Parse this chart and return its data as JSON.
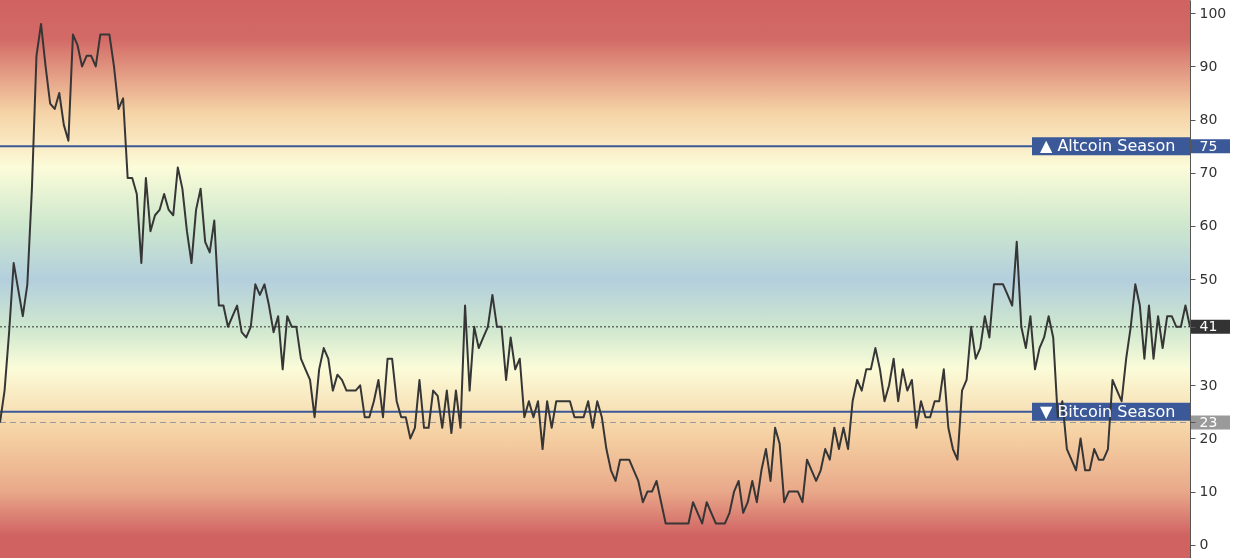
{
  "chart_data": {
    "type": "line",
    "categories": [
      null,
      null,
      null,
      null,
      null,
      null,
      null,
      null,
      null,
      null,
      null,
      null,
      null,
      null,
      null,
      null,
      null,
      null,
      null,
      null,
      null,
      null,
      null,
      null,
      null,
      null,
      null,
      null,
      null,
      null,
      null,
      null,
      null,
      null,
      null,
      null,
      null,
      null,
      null,
      null,
      null,
      null,
      null,
      null,
      null,
      null,
      null,
      null,
      null,
      null,
      null,
      null,
      null,
      null,
      null,
      null,
      null,
      null,
      null,
      null,
      null,
      null,
      null,
      null,
      null,
      null,
      null,
      null,
      null,
      null,
      null,
      null,
      null,
      null,
      null,
      null,
      null,
      null,
      null,
      null,
      null,
      null,
      null,
      null,
      null,
      null,
      null,
      null,
      null,
      null,
      null,
      null,
      null,
      null,
      null,
      null,
      null,
      null,
      null,
      null,
      null,
      null,
      null,
      null,
      null,
      null,
      null,
      null,
      null,
      null,
      null,
      null,
      null,
      null,
      null,
      null,
      null,
      null,
      null,
      null,
      null,
      null,
      null,
      null,
      null,
      null,
      null,
      null,
      null,
      null,
      null,
      null,
      null,
      null,
      null,
      null,
      null,
      null,
      null,
      null,
      null,
      null,
      null,
      null,
      null,
      null,
      null,
      null,
      null,
      null,
      null,
      null,
      null,
      null,
      null,
      null,
      null,
      null,
      null,
      null,
      null,
      null,
      null,
      null,
      null,
      null,
      null,
      null,
      null,
      null,
      null,
      null,
      null,
      null,
      null,
      null,
      null,
      null,
      null,
      null,
      null,
      null,
      null,
      null,
      null,
      null,
      null,
      null,
      null,
      null,
      null,
      null,
      null,
      null,
      null,
      null,
      null,
      null,
      null,
      null,
      null,
      null,
      null,
      null,
      null,
      null,
      null,
      null,
      null,
      null,
      null,
      null,
      null,
      null,
      null,
      null,
      null,
      null,
      null,
      null,
      null,
      null,
      null,
      null,
      null,
      null,
      null,
      null,
      null,
      null,
      null,
      null,
      null,
      null,
      null,
      null,
      null,
      null,
      null,
      null,
      null,
      null,
      null,
      null,
      null,
      null,
      null,
      null,
      null,
      null,
      null,
      null,
      null,
      null,
      null,
      null,
      null,
      null,
      null,
      null,
      null,
      null
    ],
    "values": [
      23,
      29,
      40,
      53,
      48,
      43,
      49,
      67,
      92,
      98,
      90,
      83,
      82,
      85,
      79,
      76,
      96,
      94,
      90,
      92,
      92,
      90,
      96,
      96,
      96,
      90,
      82,
      84,
      69,
      69,
      66,
      53,
      69,
      59,
      62,
      63,
      66,
      63,
      62,
      71,
      67,
      59,
      53,
      63,
      67,
      57,
      55,
      61,
      45,
      45,
      41,
      43,
      45,
      40,
      39,
      41,
      49,
      47,
      49,
      45,
      40,
      43,
      33,
      43,
      41,
      41,
      35,
      33,
      31,
      24,
      33,
      37,
      35,
      29,
      32,
      31,
      29,
      29,
      29,
      30,
      24,
      24,
      27,
      31,
      24,
      35,
      35,
      27,
      24,
      24,
      20,
      22,
      31,
      22,
      22,
      29,
      28,
      22,
      29,
      21,
      29,
      22,
      45,
      29,
      41,
      37,
      39,
      41,
      47,
      41,
      41,
      31,
      39,
      33,
      35,
      24,
      27,
      24,
      27,
      18,
      27,
      22,
      27,
      27,
      27,
      27,
      24,
      24,
      24,
      27,
      22,
      27,
      24,
      18,
      14,
      12,
      16,
      16,
      16,
      14,
      12,
      8,
      10,
      10,
      12,
      8,
      4,
      4,
      4,
      4,
      4,
      4,
      8,
      6,
      4,
      8,
      6,
      4,
      4,
      4,
      6,
      10,
      12,
      6,
      8,
      12,
      8,
      14,
      18,
      12,
      22,
      19,
      8,
      10,
      10,
      10,
      8,
      16,
      14,
      12,
      14,
      18,
      16,
      22,
      18,
      22,
      18,
      27,
      31,
      29,
      33,
      33,
      37,
      33,
      27,
      30,
      35,
      27,
      33,
      29,
      31,
      22,
      27,
      24,
      24,
      27,
      27,
      33,
      22,
      18,
      16,
      29,
      31,
      41,
      35,
      37,
      43,
      39,
      49,
      49,
      49,
      47,
      45,
      57,
      41,
      37,
      43,
      33,
      37,
      39,
      43,
      39,
      24,
      27,
      18,
      16,
      14,
      20,
      14,
      14,
      18,
      16,
      16,
      18,
      31,
      29,
      27,
      35,
      41,
      49,
      45,
      35,
      45,
      35,
      43,
      37,
      43,
      43,
      41,
      41,
      45,
      41
    ],
    "color": "#363636",
    "line_style": "solid",
    "ylim": [
      -2.5,
      102.5
    ],
    "yticks": [
      0,
      10,
      20,
      23,
      30,
      41,
      50,
      60,
      70,
      75,
      80,
      90,
      100
    ],
    "tick_labels": "y",
    "ref_lines": [
      {
        "axis": "y",
        "value": 75,
        "label": "▲ Altcoin Season",
        "color": "#3b5998",
        "line_style": "solid"
      },
      {
        "axis": "y",
        "value": 25,
        "label": "▼ Bitcoin Season",
        "color": "#3b5998",
        "line_style": "solid"
      },
      {
        "axis": "y",
        "value": 41,
        "label": null,
        "color": "#333333",
        "line_style": "dotted"
      },
      {
        "axis": "y",
        "value": 23,
        "label": null,
        "color": "#9a9a9a",
        "line_style": "dashed"
      }
    ]
  }
}
